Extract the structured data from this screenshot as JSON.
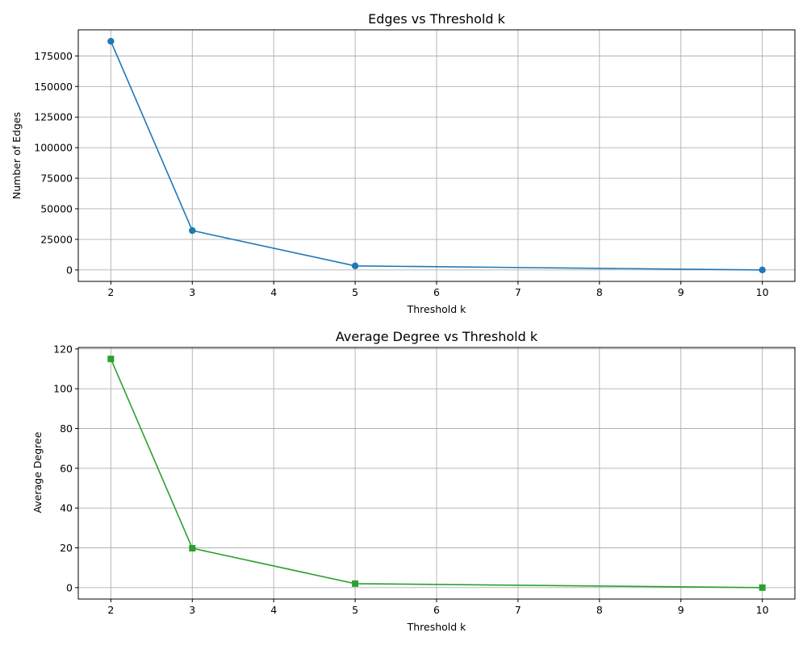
{
  "chart_data": [
    {
      "type": "line",
      "title": "Edges vs Threshold k",
      "xlabel": "Threshold k",
      "ylabel": "Number of Edges",
      "xlim": [
        1.6,
        10.4
      ],
      "ylim": [
        -9350,
        196350
      ],
      "xticks": [
        2,
        3,
        4,
        5,
        6,
        7,
        8,
        9,
        10
      ],
      "yticks": [
        0,
        25000,
        50000,
        75000,
        100000,
        125000,
        150000,
        175000
      ],
      "grid": true,
      "series": [
        {
          "color": "#1f77b4",
          "marker": "circle",
          "x": [
            2,
            3,
            5,
            10
          ],
          "y": [
            187000,
            32200,
            3300,
            0
          ]
        }
      ]
    },
    {
      "type": "line",
      "title": "Average Degree vs Threshold k",
      "xlabel": "Threshold k",
      "ylabel": "Average Degree",
      "xlim": [
        1.6,
        10.4
      ],
      "ylim": [
        -5.75,
        120.75
      ],
      "xticks": [
        2,
        3,
        4,
        5,
        6,
        7,
        8,
        9,
        10
      ],
      "yticks": [
        0,
        20,
        40,
        60,
        80,
        100,
        120
      ],
      "grid": true,
      "series": [
        {
          "color": "#2ca02c",
          "marker": "square",
          "x": [
            2,
            3,
            5,
            10
          ],
          "y": [
            115,
            19.8,
            2,
            0
          ]
        }
      ]
    }
  ]
}
